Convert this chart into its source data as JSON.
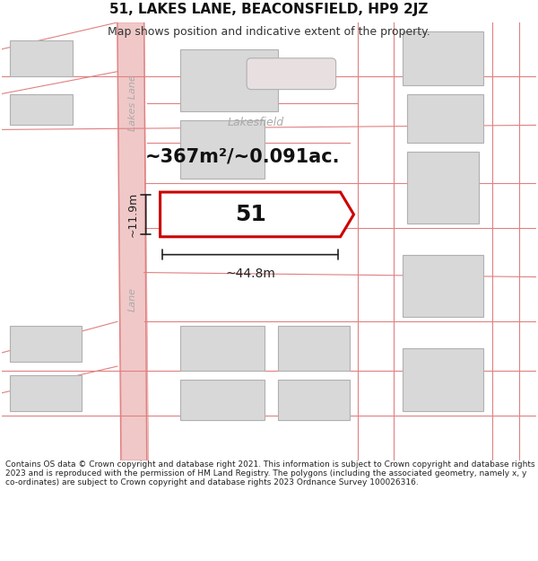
{
  "title": "51, LAKES LANE, BEACONSFIELD, HP9 2JZ",
  "subtitle": "Map shows position and indicative extent of the property.",
  "area_text": "~367m²/~0.091ac.",
  "label_51": "51",
  "dim_width": "~44.8m",
  "dim_height": "~11.9m",
  "road_label_top": "Lakes Lane",
  "road_label_bottom": "Lane",
  "street_label": "Lakesfield",
  "footer": "Contains OS data © Crown copyright and database right 2021. This information is subject to Crown copyright and database rights 2023 and is reproduced with the permission of HM Land Registry. The polygons (including the associated geometry, namely x, y co-ordinates) are subject to Crown copyright and database rights 2023 Ordnance Survey 100026316.",
  "bg_color": "#ffffff",
  "map_bg": "#f9f0f0",
  "road_color": "#f0c8c8",
  "road_stroke": "#e08080",
  "building_fill": "#d8d8d8",
  "building_stroke": "#b0b0b0",
  "highlight_fill": "#ffffff",
  "highlight_stroke": "#cc0000",
  "dim_color": "#222222",
  "text_color": "#333333",
  "road_text_color": "#aaaaaa",
  "street_text_color": "#aaaaaa"
}
